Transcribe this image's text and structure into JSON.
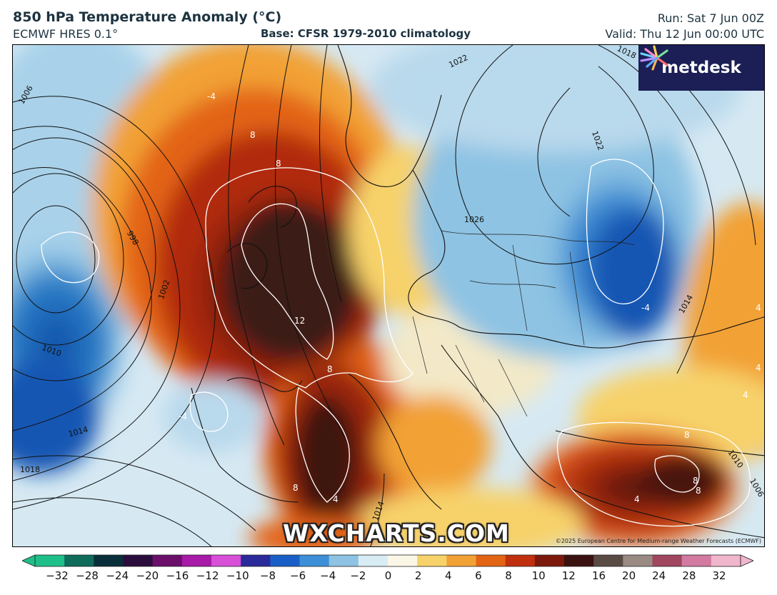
{
  "header": {
    "title": "850 hPa Temperature Anomaly (°C)",
    "model": "ECMWF HRES 0.1°",
    "baseline": "Base: CFSR 1979-2010 climatology",
    "run": "Run: Sat 7 Jun 00Z",
    "valid": "Valid: Thu 12 Jun 00:00 UTC"
  },
  "logo": {
    "text": "metdesk",
    "icon": "starburst-icon"
  },
  "watermark": "WXCHARTS.COM",
  "copyright": "©2025 European Centre for Medium-range Weather Forecasts (ECMWF)",
  "map": {
    "isobar_labels": [
      "1006",
      "998",
      "1002",
      "1010",
      "1014",
      "1018",
      "1022",
      "1026",
      "1022",
      "1018",
      "1014",
      "1010",
      "1014",
      "1006"
    ],
    "anomaly_labels": [
      "-4",
      "8",
      "8",
      "12",
      "8",
      "-4",
      "-4",
      "4",
      "4",
      "8",
      "8",
      "4",
      "8",
      "4",
      "4",
      "8"
    ],
    "colors": {
      "extreme_warm": "#2b0d0b",
      "very_warm": "#7b1a0c",
      "warm": "#e25a13",
      "mild": "#f5b840",
      "neutral": "#f4f1df",
      "cool": "#8ec3e3",
      "cold": "#2d7fc8",
      "very_cold": "#0f4fa8"
    }
  },
  "colorbar": {
    "ticks": [
      "-32",
      "-28",
      "-24",
      "-20",
      "-16",
      "-12",
      "-10",
      "-8",
      "-6",
      "-4",
      "-2",
      "0",
      "2",
      "4",
      "6",
      "8",
      "10",
      "12",
      "16",
      "20",
      "24",
      "28",
      "32"
    ],
    "stops": [
      "#1fbf8a",
      "#0f6b5a",
      "#0a2e3a",
      "#2a0d3c",
      "#6b0f6b",
      "#a81aa8",
      "#d84fd8",
      "#2a2a9a",
      "#1a5fc8",
      "#3c8fd8",
      "#8ec3e3",
      "#d8ecf5",
      "#fbf7e6",
      "#f7d26a",
      "#f2a136",
      "#e36415",
      "#c0300f",
      "#7b1a0c",
      "#3a1210",
      "#5a4a44",
      "#9a8a84",
      "#a0465e",
      "#d27aa0",
      "#f0b6cc"
    ]
  }
}
